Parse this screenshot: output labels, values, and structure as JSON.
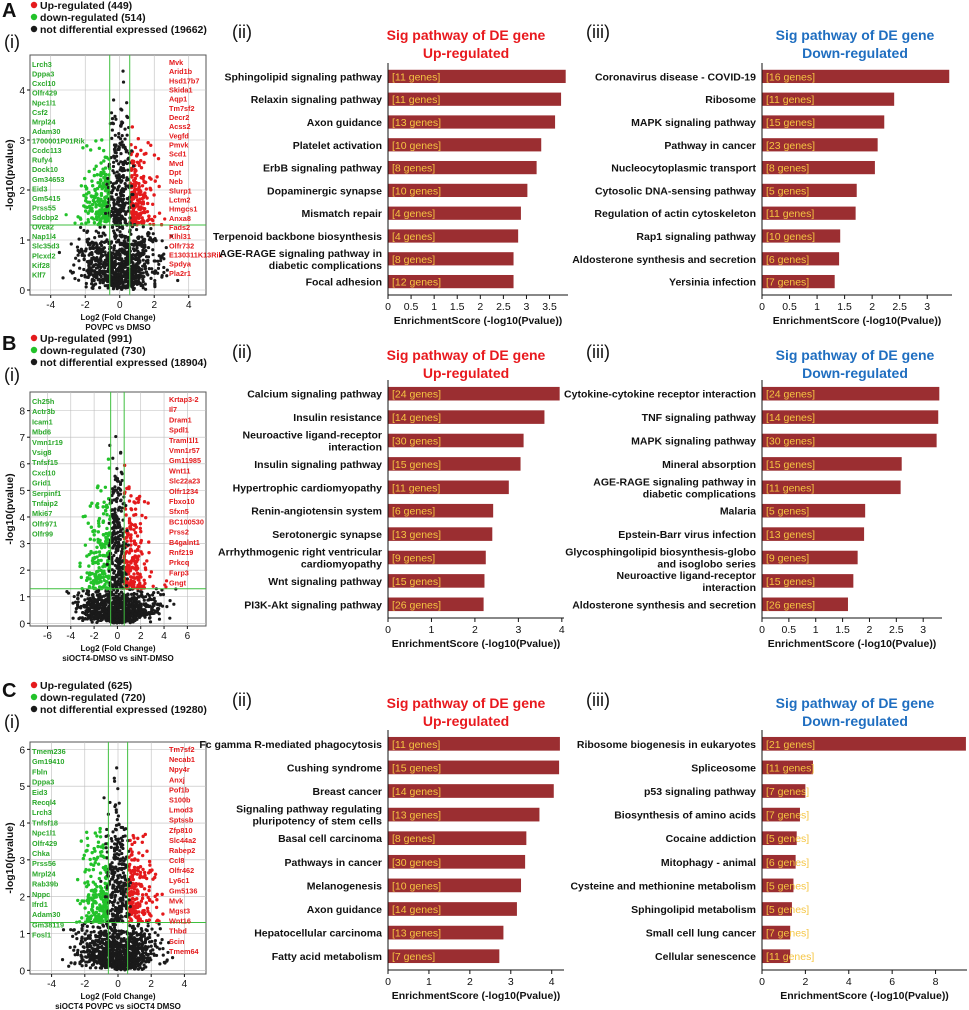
{
  "figure": {
    "rows": [
      {
        "panel_letter": "A",
        "volcano": {
          "label": "(i)",
          "legend": [
            "Up-regulated (449)",
            "down-regulated (514)",
            "not differential expressed (19662)"
          ],
          "xlabel": "Log2 (Fold Change)",
          "subtitle": "POVPC vs DMSO",
          "ylabel": "-log10(pvalue)",
          "xticks": [
            -4,
            -2,
            0,
            2,
            4
          ],
          "yticks": [
            0,
            1,
            2,
            3,
            4
          ],
          "xlim": [
            -5.2,
            5.0
          ],
          "ylim": [
            -0.1,
            4.7
          ],
          "left_genes": [
            "Lrch3",
            "Dppa3",
            "Cxcl10",
            "Olfr429",
            "Npc1l1",
            "Csf2",
            "Mrpl24",
            "Adam30",
            "1700001P01Rik",
            "Ccdc113",
            "Rufy4",
            "Dock10",
            "Gm34653",
            "Eid3",
            "Gm5415",
            "Prss55",
            "Sdcbp2",
            "Ovca2",
            "Nap1l4",
            "Slc35d3",
            "Plcxd2",
            "Kif28",
            "Klf7"
          ],
          "right_genes": [
            "Mvk",
            "Arid1b",
            "Hsd17b7",
            "Skida1",
            "Aqp1",
            "Tm7sf2",
            "Decr2",
            "Acss2",
            "Vegfd",
            "Pmvk",
            "Scd1",
            "Mvd",
            "Dpt",
            "Neb",
            "Slurp1",
            "Lctm2",
            "Hmgcs1",
            "Anxa8",
            "Fads2",
            "Klhl31",
            "Olfr732",
            "E130311K13Rik",
            "Spdya",
            "Pla2r1"
          ]
        },
        "up": {
          "label": "(ii)",
          "title": [
            "Sig pathway of DE gene",
            "Up-regulated"
          ],
          "chart_data": {
            "type": "bar",
            "orientation": "horizontal",
            "categories": [
              "Sphingolipid signaling pathway",
              "Relaxin signaling pathway",
              "Axon guidance",
              "Platelet activation",
              "ErbB signaling pathway",
              "Dopaminergic synapse",
              "Mismatch repair",
              "Terpenoid backbone biosynthesis",
              "AGE-RAGE signaling pathway in diabetic complications",
              "Focal adhesion"
            ],
            "values": [
              3.85,
              3.75,
              3.62,
              3.32,
              3.22,
              3.02,
              2.88,
              2.82,
              2.72,
              2.72
            ],
            "annotations": [
              "[11 genes]",
              "[11 genes]",
              "[13 genes]",
              "[10 genes]",
              "[8 genes]",
              "[10 genes]",
              "[4 genes]",
              "[4 genes]",
              "[8 genes]",
              "[12 genes]"
            ],
            "xticks": [
              0,
              0.5,
              1,
              1.5,
              2,
              2.5,
              3,
              3.5
            ],
            "xlim": [
              0,
              3.9
            ],
            "xlabel": "EnrichmentScore (-log10(Pvalue))"
          }
        },
        "down": {
          "label": "(iii)",
          "title": [
            "Sig pathway of DE gene",
            "Down-regulated"
          ],
          "chart_data": {
            "type": "bar",
            "orientation": "horizontal",
            "categories": [
              "Coronavirus disease - COVID-19",
              "Ribosome",
              "MAPK signaling pathway",
              "Pathway in cancer",
              "Nucleocytoplasmic transport",
              "Cytosolic DNA-sensing pathway",
              "Regulation of actin cytoskeleton",
              "Rap1 signaling pathway",
              "Aldosterone synthesis and secretion",
              "Yersinia infection"
            ],
            "values": [
              3.4,
              2.4,
              2.22,
              2.1,
              2.05,
              1.72,
              1.7,
              1.42,
              1.4,
              1.32
            ],
            "annotations": [
              "[16 genes]",
              "[11 genes]",
              "[15 genes]",
              "[23 genes]",
              "[8 genes]",
              "[5 genes]",
              "[11 genes]",
              "[10 genes]",
              "[6 genes]",
              "[7 genes]"
            ],
            "xticks": [
              0,
              0.5,
              1,
              1.5,
              2,
              2.5,
              3
            ],
            "xlim": [
              0,
              3.45
            ],
            "xlabel": "EnrichmentScore (-log10(Pvalue))"
          }
        }
      },
      {
        "panel_letter": "B",
        "volcano": {
          "label": "(i)",
          "legend": [
            "Up-regulated (991)",
            "down-regulated (730)",
            "not differential expressed (18904)"
          ],
          "xlabel": "Log2 (Fold Change)",
          "subtitle": "siOCT4-DMSO vs siNT-DMSO",
          "ylabel": "-log10(pvalue)",
          "xticks": [
            -6,
            -4,
            -2,
            0,
            2,
            4,
            6
          ],
          "yticks": [
            0,
            1,
            2,
            3,
            4,
            5,
            6,
            7,
            8
          ],
          "xlim": [
            -7.5,
            7.6
          ],
          "ylim": [
            -0.1,
            8.7
          ],
          "left_genes": [
            "Ch25h",
            "Actr3b",
            "Icam1",
            "Mbd6",
            "Vmn1r19",
            "Vsig8",
            "Tnfsf15",
            "Cxcl10",
            "Grid1",
            "Serpinf1",
            "Tnfaip2",
            "Mki67",
            "Olfr971",
            "Olfr99"
          ],
          "right_genes": [
            "Krtap3-2",
            "Il7",
            "Dram1",
            "Spdl1",
            "Traml1l1",
            "Vmn1r57",
            "Gm11985",
            "Wnt11",
            "Slc22a23",
            "Olfr1234",
            "Fbxo10",
            "Sfxn5",
            "BC100530",
            "Prss2",
            "B4galnt1",
            "Rnf219",
            "Prkcq",
            "Farp3",
            "Gngt"
          ]
        },
        "up": {
          "label": "(ii)",
          "title": [
            "Sig pathway of DE gene",
            "Up-regulated"
          ],
          "chart_data": {
            "type": "bar",
            "orientation": "horizontal",
            "categories": [
              "Calcium signaling pathway",
              "Insulin resistance",
              "Neuroactive ligand-receptor interaction",
              "Insulin signaling pathway",
              "Hypertrophic cardiomyopathy",
              "Renin-angiotensin system",
              "Serotonergic synapse",
              "Arrhythmogenic right ventricular cardiomyopathy",
              "Wnt signaling pathway",
              "PI3K-Akt signaling pathway"
            ],
            "values": [
              3.95,
              3.6,
              3.12,
              3.05,
              2.78,
              2.42,
              2.4,
              2.25,
              2.22,
              2.2
            ],
            "annotations": [
              "[24 genes]",
              "[14 genes]",
              "[30 genes]",
              "[15 genes]",
              "[11 genes]",
              "[6 genes]",
              "[13 genes]",
              "[9 genes]",
              "[15 genes]",
              "[26 genes]"
            ],
            "xticks": [
              0,
              1,
              2,
              3,
              4
            ],
            "xlim": [
              0,
              4.05
            ],
            "xlabel": "EnrichmentScore (-log10(Pvalue))"
          }
        },
        "down": {
          "label": "(iii)",
          "title": [
            "Sig pathway of DE gene",
            "Down-regulated"
          ],
          "chart_data": {
            "type": "bar",
            "orientation": "horizontal",
            "categories": [
              "Cytokine-cytokine receptor interaction",
              "TNF signaling pathway",
              "MAPK signaling pathway",
              "Mineral absorption",
              "AGE-RAGE signaling pathway in diabetic complications",
              "Malaria",
              "Epstein-Barr virus infection",
              "Glycosphingolipid biosynthesis-globo and isoglobo series",
              "Neuroactive ligand-receptor interaction",
              "Aldosterone synthesis and secretion"
            ],
            "values": [
              3.3,
              3.28,
              3.25,
              2.6,
              2.58,
              1.92,
              1.9,
              1.78,
              1.7,
              1.6
            ],
            "annotations": [
              "[24 genes]",
              "[14 genes]",
              "[30 genes]",
              "[15 genes]",
              "[11 genes]",
              "[5 genes]",
              "[13 genes]",
              "[9 genes]",
              "[15 genes]",
              "[26 genes]"
            ],
            "xticks": [
              0,
              0.5,
              1,
              1.5,
              2,
              2.5,
              3
            ],
            "xlim": [
              0,
              3.35
            ],
            "xlabel": "EnrichmentScore (-log10(Pvalue))"
          }
        }
      },
      {
        "panel_letter": "C",
        "volcano": {
          "label": "(i)",
          "legend": [
            "Up-regulated (625)",
            "down-regulated (720)",
            "not differential expressed (19280)"
          ],
          "xlabel": "Log2 (Fold Change)",
          "subtitle": "siOCT4 POVPC vs siOCT4 DMSO",
          "ylabel": "-log10(pvalue)",
          "xticks": [
            -4,
            -2,
            0,
            2,
            4
          ],
          "yticks": [
            0,
            1,
            2,
            3,
            4,
            5,
            6
          ],
          "xlim": [
            -5.3,
            5.3
          ],
          "ylim": [
            -0.1,
            6.2
          ],
          "left_genes": [
            "Tmem236",
            "Gm19410",
            "Fbln",
            "Dppa3",
            "Eid3",
            "Recql4",
            "Lrch3",
            "Tnfsf18",
            "Npc1l1",
            "Olfr429",
            "Chka",
            "Prss56",
            "Mrpl24",
            "Rab39b",
            "Nppc",
            "Ifrd1",
            "Adam30",
            "Gm38119",
            "Fosl1"
          ],
          "right_genes": [
            "Tm7sf2",
            "Necab1",
            "Npy4r",
            "Anxj",
            "Pof1b",
            "S100b",
            "Lmod3",
            "Sptssb",
            "Zfp810",
            "Slc44a2",
            "Rabep2",
            "Ccl8",
            "Olfr462",
            "Ly6c1",
            "Gm5136",
            "Mvk",
            "Mgst3",
            "Wnt16",
            "Thbd",
            "Scin",
            "Tmem64"
          ]
        },
        "up": {
          "label": "(ii)",
          "title": [
            "Sig pathway of DE gene",
            "Up-regulated"
          ],
          "chart_data": {
            "type": "bar",
            "orientation": "horizontal",
            "categories": [
              "Fc gamma R-mediated phagocytosis",
              "Cushing syndrome",
              "Breast cancer",
              "Signaling pathway regulating pluripotency of stem cells",
              "Basal cell carcinoma",
              "Pathways in cancer",
              "Melanogenesis",
              "Axon guidance",
              "Hepatocellular carcinoma",
              "Fatty acid metabolism"
            ],
            "values": [
              4.2,
              4.18,
              4.05,
              3.7,
              3.38,
              3.35,
              3.25,
              3.15,
              2.82,
              2.72
            ],
            "annotations": [
              "[11 genes]",
              "[15 genes]",
              "[14 genes]",
              "[13 genes]",
              "[8 genes]",
              "[30 genes]",
              "[10 genes]",
              "[14 genes]",
              "[13 genes]",
              "[7 genes]"
            ],
            "xticks": [
              0,
              1,
              2,
              3,
              4
            ],
            "xlim": [
              0,
              4.3
            ],
            "xlabel": "EnrichmentScore (-log10(Pvalue))"
          }
        },
        "down": {
          "label": "(iii)",
          "title": [
            "Sig pathway of DE gene",
            "Down-regulated"
          ],
          "chart_data": {
            "type": "bar",
            "orientation": "horizontal",
            "categories": [
              "Ribosome biogenesis in eukaryotes",
              "Spliceosome",
              "p53 signaling pathway",
              "Biosynthesis of amino acids",
              "Cocaine addiction",
              "Mitophagy - animal",
              "Cysteine and methionine metabolism",
              "Sphingolipid metabolism",
              "Small cell lung cancer",
              "Cellular senescence"
            ],
            "values": [
              9.4,
              2.35,
              2.0,
              1.75,
              1.6,
              1.55,
              1.45,
              1.38,
              1.3,
              1.3
            ],
            "annotations": [
              "[21 genes]",
              "[11 genes]",
              "[7 genes]",
              "[7 genes]",
              "[5 genes]",
              "[6 genes]",
              "[5 genes]",
              "[5 genes]",
              "[7 genes]",
              "[11 genes]"
            ],
            "xticks": [
              0,
              2,
              4,
              6,
              8
            ],
            "xlim": [
              0,
              9.45
            ],
            "xlabel": "EnrichmentScore (-log10(Pvalue))"
          }
        }
      }
    ]
  },
  "colors": {
    "bar": "#9b2e31",
    "bar_label": "#f5c542",
    "up_title": "#e8191e",
    "down_title": "#1f6ec0",
    "up_point": "#e41a1c",
    "down_point": "#22c22a",
    "ns_point": "#1a1a1a",
    "threshold": "#3fbf3f",
    "grid": "#bdbdbd",
    "up_gene": "#e41a1c",
    "down_gene": "#2aa82a"
  }
}
